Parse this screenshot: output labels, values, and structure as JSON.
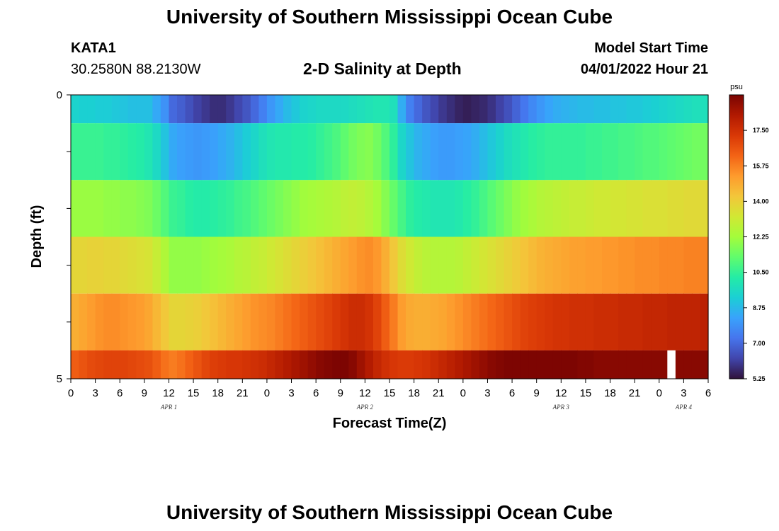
{
  "header": {
    "title": "University of Southern Mississippi Ocean Cube",
    "station": "KATA1",
    "coordinates": "30.2580N  88.2130W",
    "subtitle": "2-D Salinity at Depth",
    "model_start_label": "Model Start Time",
    "model_start_value": "04/01/2022 Hour 21"
  },
  "footer": {
    "title": "University of Southern Mississippi Ocean Cube"
  },
  "chart_data": {
    "type": "heatmap",
    "title": "2-D Salinity at Depth",
    "xlabel": "Forecast Time(Z)",
    "ylabel": "Depth (ft)",
    "ylim": [
      0,
      5
    ],
    "y_tick_labels": [
      "0",
      "5"
    ],
    "y_ticks": [
      0,
      1,
      2,
      3,
      4,
      5
    ],
    "x_range_hours": [
      0,
      78
    ],
    "x_tick_labels": [
      "0",
      "3",
      "6",
      "9",
      "12",
      "15",
      "18",
      "21",
      "0",
      "3",
      "6",
      "9",
      "12",
      "15",
      "18",
      "21",
      "0",
      "3",
      "6",
      "9",
      "12",
      "15",
      "18",
      "21",
      "0",
      "3",
      "6"
    ],
    "day_labels": [
      {
        "label": "APR 1",
        "hour": 12
      },
      {
        "label": "APR 2",
        "hour": 36
      },
      {
        "label": "APR 3",
        "hour": 60
      },
      {
        "label": "APR 4",
        "hour": 75
      }
    ],
    "colorbar": {
      "unit": "psu",
      "min": 5.25,
      "max": 19.25,
      "tick_labels": [
        "5.25",
        "7.00",
        "8.75",
        "10.50",
        "12.25",
        "14.00",
        "15.75",
        "17.50"
      ],
      "colors": [
        "#30123b",
        "#4145ab",
        "#4675ed",
        "#39a2fc",
        "#1bcfd4",
        "#24eca6",
        "#61fc6c",
        "#a4fc3b",
        "#d1e834",
        "#f3c63a",
        "#fe9b2d",
        "#f36315",
        "#d93806",
        "#b11901",
        "#7a0402"
      ]
    },
    "layers": [
      {
        "depth_range": [
          0,
          0.5
        ],
        "values": [
          9.4,
          9.3,
          9.3,
          9.2,
          9.2,
          9.1,
          9.0,
          8.9,
          8.9,
          8.9,
          8.4,
          7.9,
          7.0,
          6.8,
          6.5,
          6.2,
          6.0,
          5.8,
          5.8,
          6.0,
          6.3,
          6.6,
          7.0,
          7.5,
          8.0,
          8.4,
          8.8,
          9.1,
          9.4,
          9.5,
          9.6,
          9.6,
          9.6,
          9.6,
          9.7,
          9.8,
          9.9,
          10.0,
          10.0,
          9.8,
          8.5,
          7.5,
          7.0,
          6.6,
          6.3,
          6.0,
          5.8,
          5.6,
          5.5,
          5.6,
          5.7,
          5.9,
          6.2,
          6.5,
          6.9,
          7.3,
          7.7,
          8.0,
          8.3,
          8.5,
          8.6,
          8.7,
          8.8,
          8.8,
          8.9,
          8.9,
          9.0,
          9.0,
          9.1,
          9.1,
          9.2,
          9.3,
          9.4,
          9.5,
          9.6,
          9.7,
          9.8,
          9.8
        ]
      },
      {
        "depth_range": [
          0.5,
          1.5
        ],
        "values": [
          10.6,
          10.6,
          10.6,
          10.6,
          10.5,
          10.5,
          10.4,
          10.3,
          10.2,
          10.0,
          9.6,
          9.0,
          8.4,
          8.2,
          8.1,
          8.0,
          8.1,
          8.2,
          8.4,
          8.6,
          8.9,
          9.2,
          9.5,
          9.8,
          10.0,
          10.1,
          10.1,
          10.2,
          10.2,
          10.3,
          10.5,
          10.7,
          10.9,
          11.2,
          11.5,
          11.7,
          11.8,
          11.5,
          11.0,
          10.4,
          9.5,
          9.0,
          8.6,
          8.4,
          8.2,
          8.1,
          8.1,
          8.2,
          8.3,
          8.5,
          8.8,
          9.1,
          9.4,
          9.7,
          9.9,
          10.1,
          10.3,
          10.4,
          10.5,
          10.5,
          10.5,
          10.5,
          10.5,
          10.6,
          10.6,
          10.7,
          10.7,
          10.8,
          10.8,
          10.9,
          11.0,
          11.0,
          11.1,
          11.2,
          11.3,
          11.4,
          11.5,
          11.5
        ]
      },
      {
        "depth_range": [
          1.5,
          2.5
        ],
        "values": [
          12.1,
          12.1,
          12.1,
          12.1,
          12.0,
          12.0,
          11.9,
          11.9,
          11.8,
          11.7,
          11.4,
          11.0,
          10.6,
          10.5,
          10.3,
          10.2,
          10.2,
          10.3,
          10.4,
          10.5,
          10.7,
          10.8,
          11.0,
          11.2,
          11.4,
          11.6,
          11.8,
          12.0,
          12.2,
          12.3,
          12.4,
          12.5,
          12.6,
          12.8,
          12.9,
          12.8,
          12.6,
          12.3,
          11.8,
          11.3,
          10.8,
          10.4,
          10.2,
          10.1,
          10.0,
          10.0,
          10.0,
          10.1,
          10.3,
          10.5,
          10.8,
          11.1,
          11.4,
          11.7,
          12.0,
          12.2,
          12.4,
          12.6,
          12.7,
          12.8,
          12.9,
          13.0,
          13.0,
          13.1,
          13.2,
          13.2,
          13.3,
          13.3,
          13.4,
          13.4,
          13.5,
          13.5,
          13.5,
          13.6,
          13.6,
          13.7,
          13.7,
          13.7
        ]
      },
      {
        "depth_range": [
          2.5,
          3.5
        ],
        "values": [
          13.8,
          13.8,
          13.9,
          13.9,
          13.8,
          13.8,
          13.7,
          13.6,
          13.5,
          13.4,
          13.0,
          12.5,
          12.0,
          12.0,
          12.0,
          12.0,
          12.1,
          12.2,
          12.3,
          12.4,
          12.6,
          12.7,
          12.9,
          13.0,
          13.2,
          13.4,
          13.6,
          13.8,
          14.0,
          14.2,
          14.4,
          14.6,
          14.8,
          15.0,
          15.2,
          15.4,
          15.5,
          15.3,
          14.8,
          14.2,
          13.6,
          13.2,
          12.9,
          12.7,
          12.6,
          12.6,
          12.6,
          12.7,
          12.9,
          13.1,
          13.3,
          13.5,
          13.7,
          13.9,
          14.1,
          14.3,
          14.5,
          14.7,
          14.8,
          14.9,
          15.0,
          15.1,
          15.1,
          15.2,
          15.2,
          15.3,
          15.3,
          15.4,
          15.4,
          15.5,
          15.5,
          15.5,
          15.6,
          15.6,
          15.6,
          15.7,
          15.7,
          15.7
        ]
      },
      {
        "depth_range": [
          3.5,
          4.5
        ],
        "values": [
          14.8,
          15.0,
          15.2,
          15.4,
          15.5,
          15.5,
          15.4,
          15.3,
          15.2,
          15.0,
          14.6,
          14.2,
          13.8,
          13.8,
          13.9,
          14.0,
          14.2,
          14.4,
          14.6,
          14.8,
          15.0,
          15.2,
          15.4,
          15.5,
          15.6,
          15.8,
          16.0,
          16.2,
          16.4,
          16.6,
          16.8,
          17.0,
          17.2,
          17.4,
          17.6,
          17.6,
          17.4,
          17.0,
          16.4,
          15.8,
          15.2,
          14.9,
          14.8,
          14.8,
          14.9,
          15.0,
          15.2,
          15.4,
          15.6,
          15.8,
          16.0,
          16.2,
          16.4,
          16.6,
          16.8,
          17.0,
          17.1,
          17.2,
          17.3,
          17.4,
          17.4,
          17.5,
          17.5,
          17.5,
          17.6,
          17.6,
          17.6,
          17.7,
          17.7,
          17.7,
          17.8,
          17.8,
          17.8,
          17.9,
          17.9,
          17.9,
          17.9,
          18.0
        ]
      },
      {
        "depth_range": [
          4.5,
          5
        ],
        "values": [
          16.4,
          16.6,
          16.8,
          16.9,
          17.0,
          17.0,
          17.0,
          16.9,
          16.8,
          16.7,
          16.4,
          16.0,
          15.8,
          16.0,
          16.3,
          16.6,
          16.9,
          17.1,
          17.2,
          17.3,
          17.3,
          17.4,
          17.5,
          17.6,
          17.8,
          18.0,
          18.2,
          18.4,
          18.6,
          18.8,
          19.0,
          19.1,
          19.2,
          19.2,
          19.0,
          18.6,
          18.2,
          17.8,
          17.5,
          17.3,
          17.2,
          17.2,
          17.3,
          17.4,
          17.6,
          17.8,
          18.0,
          18.2,
          18.4,
          18.6,
          18.8,
          19.0,
          19.1,
          19.2,
          19.2,
          19.2,
          19.2,
          19.2,
          19.2,
          19.2,
          19.2,
          19.2,
          19.1,
          19.1,
          19.0,
          19.0,
          19.0,
          19.0,
          19.0,
          19.0,
          19.0,
          19.0,
          19.0,
          null,
          19.0,
          19.0,
          19.0,
          19.0
        ]
      }
    ]
  }
}
